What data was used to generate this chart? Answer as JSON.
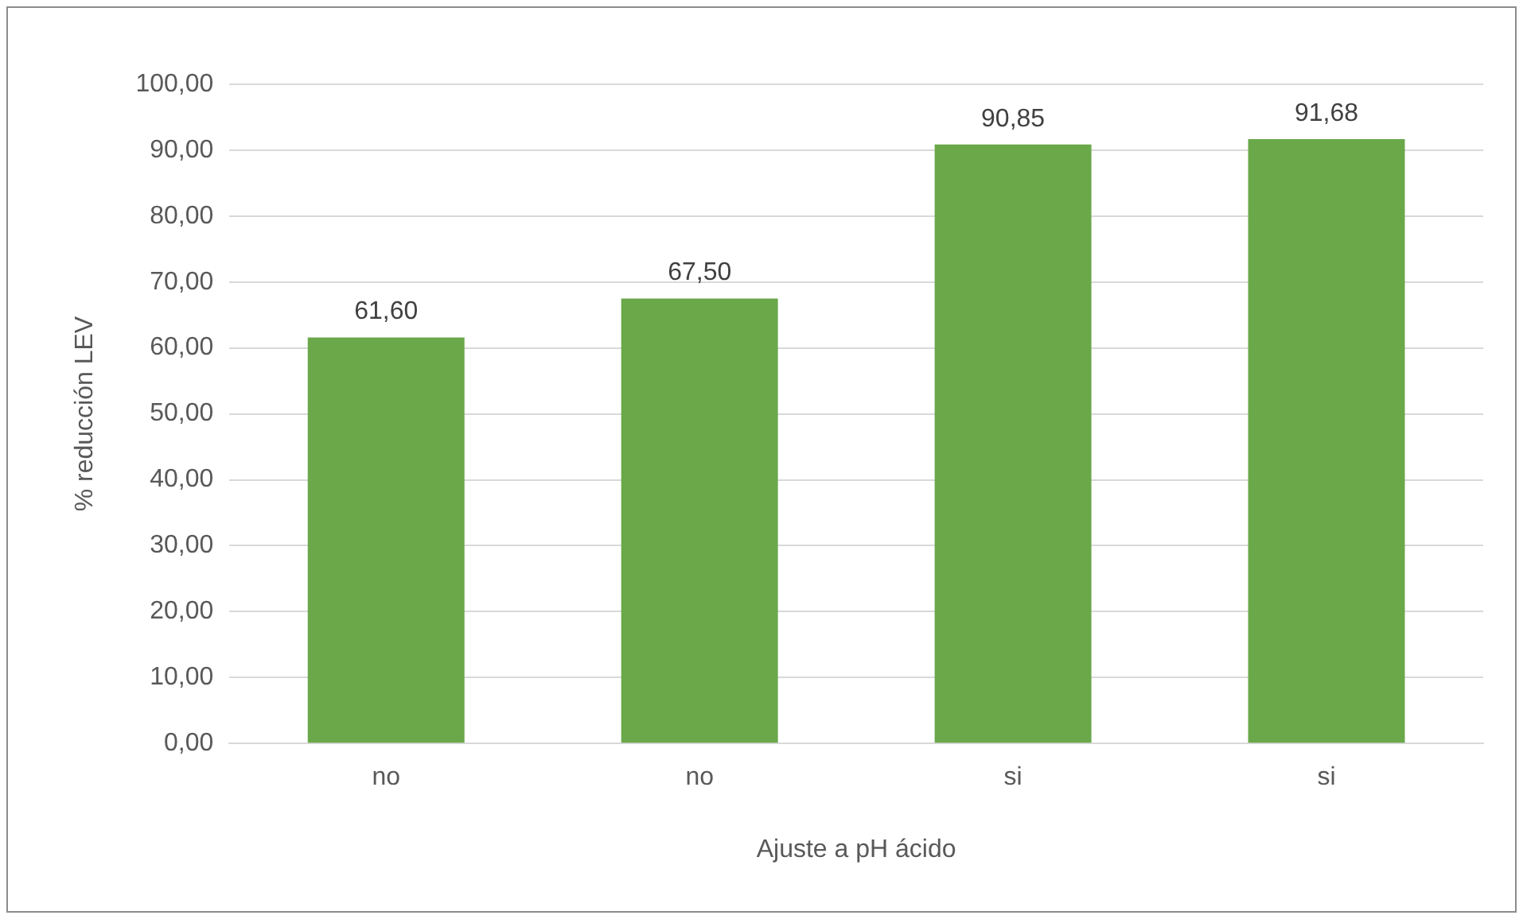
{
  "chart_data": {
    "type": "bar",
    "xlabel": "Ajuste a pH ácido",
    "ylabel": "% reducción LEV",
    "categories": [
      "no",
      "no",
      "si",
      "si"
    ],
    "values": [
      61.6,
      67.5,
      90.85,
      91.68
    ],
    "value_labels": [
      "61,60",
      "67,50",
      "90,85",
      "91,68"
    ],
    "color": "#6aa84a",
    "ylim": [
      0,
      100
    ],
    "yticks": [
      {
        "value": 0,
        "label": "0,00"
      },
      {
        "value": 10,
        "label": "10,00"
      },
      {
        "value": 20,
        "label": "20,00"
      },
      {
        "value": 30,
        "label": "30,00"
      },
      {
        "value": 40,
        "label": "40,00"
      },
      {
        "value": 50,
        "label": "50,00"
      },
      {
        "value": 60,
        "label": "60,00"
      },
      {
        "value": 70,
        "label": "70,00"
      },
      {
        "value": 80,
        "label": "80,00"
      },
      {
        "value": 90,
        "label": "90,00"
      },
      {
        "value": 100,
        "label": "100,00"
      }
    ],
    "grid": "y"
  }
}
